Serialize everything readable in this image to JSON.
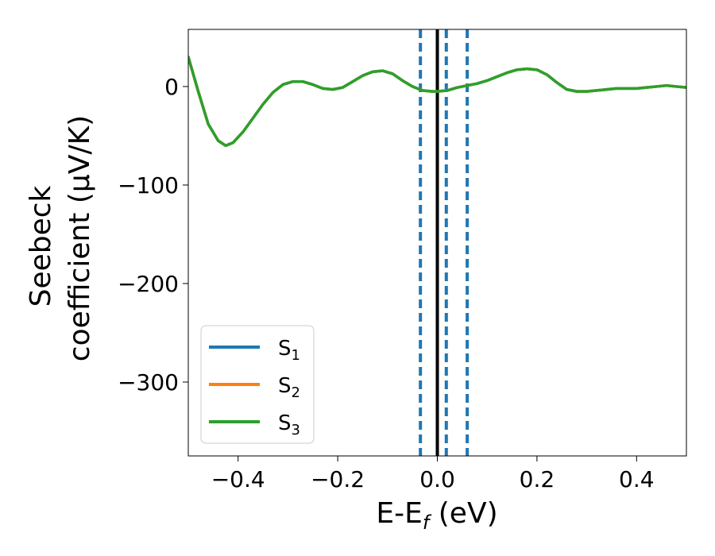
{
  "chart_data": {
    "type": "line",
    "xlabel": "E-E",
    "xlabel_sub": "f",
    "xlabel_unit": " (eV)",
    "ylabel_line1": "Seebeck",
    "ylabel_line2": "coefficient  (μV/K)",
    "xlim": [
      -0.5,
      0.5
    ],
    "ylim": [
      -375,
      58
    ],
    "xticks": [
      -0.4,
      -0.2,
      0.0,
      0.2,
      0.4
    ],
    "xtick_labels": [
      "−0.4",
      "−0.2",
      "0.0",
      "0.2",
      "0.4"
    ],
    "yticks": [
      0,
      -100,
      -200,
      -300
    ],
    "ytick_labels": [
      "0",
      "−100",
      "−200",
      "−300"
    ],
    "grid": false,
    "legend_position": "lower-left",
    "vertical_lines": [
      {
        "x": -0.034,
        "style": "dashed",
        "color": "#1f77b4"
      },
      {
        "x": 0.0,
        "style": "solid",
        "color": "#000000"
      },
      {
        "x": 0.018,
        "style": "dashed",
        "color": "#1f77b4"
      },
      {
        "x": 0.06,
        "style": "dashed",
        "color": "#1f77b4"
      }
    ],
    "x": [
      -0.5,
      -0.48,
      -0.46,
      -0.44,
      -0.425,
      -0.41,
      -0.39,
      -0.37,
      -0.35,
      -0.33,
      -0.31,
      -0.29,
      -0.27,
      -0.25,
      -0.23,
      -0.21,
      -0.19,
      -0.17,
      -0.15,
      -0.13,
      -0.11,
      -0.09,
      -0.07,
      -0.05,
      -0.03,
      -0.01,
      0.0,
      0.02,
      0.04,
      0.06,
      0.08,
      0.1,
      0.12,
      0.14,
      0.16,
      0.18,
      0.2,
      0.22,
      0.24,
      0.26,
      0.28,
      0.3,
      0.32,
      0.34,
      0.36,
      0.38,
      0.4,
      0.42,
      0.44,
      0.46,
      0.48,
      0.5
    ],
    "series": [
      {
        "name": "S",
        "sub": "1",
        "color": "#1f77b4",
        "values": [
          30,
          -5,
          -38,
          -55,
          -60,
          -57,
          -46,
          -32,
          -18,
          -6,
          2,
          5,
          5,
          2,
          -2,
          -3,
          -1,
          5,
          11,
          15,
          16,
          13,
          6,
          0,
          -4,
          -5,
          -5,
          -4,
          -1,
          1,
          3,
          6,
          10,
          14,
          17,
          18,
          17,
          12,
          4,
          -3,
          -5,
          -5,
          -4,
          -3,
          -2,
          -2,
          -2,
          -1,
          0,
          1,
          0,
          -1
        ]
      },
      {
        "name": "S",
        "sub": "2",
        "color": "#ff7f0e",
        "values": [
          30,
          -5,
          -38,
          -55,
          -60,
          -57,
          -46,
          -32,
          -18,
          -6,
          2,
          5,
          5,
          2,
          -2,
          -3,
          -1,
          5,
          11,
          15,
          16,
          13,
          6,
          0,
          -4,
          -5,
          -5,
          -4,
          -1,
          1,
          3,
          6,
          10,
          14,
          17,
          18,
          17,
          12,
          4,
          -3,
          -5,
          -5,
          -4,
          -3,
          -2,
          -2,
          -2,
          -1,
          0,
          1,
          0,
          -1
        ]
      },
      {
        "name": "S",
        "sub": "3",
        "color": "#2ca02c",
        "values": [
          30,
          -5,
          -38,
          -55,
          -60,
          -57,
          -46,
          -32,
          -18,
          -6,
          2,
          5,
          5,
          2,
          -2,
          -3,
          -1,
          5,
          11,
          15,
          16,
          13,
          6,
          0,
          -4,
          -5,
          -5,
          -4,
          -1,
          1,
          3,
          6,
          10,
          14,
          17,
          18,
          17,
          12,
          4,
          -3,
          -5,
          -5,
          -4,
          -3,
          -2,
          -2,
          -2,
          -1,
          0,
          1,
          0,
          -1
        ]
      }
    ]
  }
}
